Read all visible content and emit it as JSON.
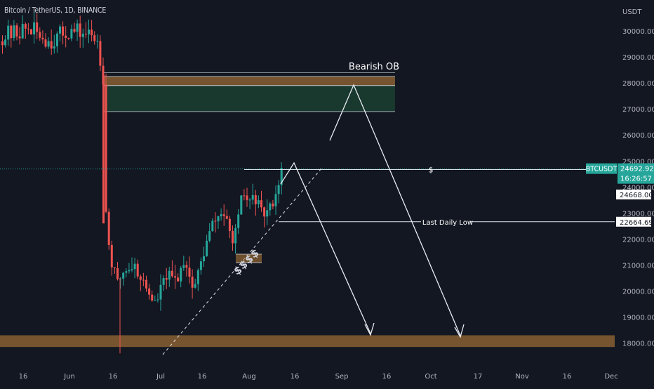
{
  "header": {
    "symbol_line": "Bitcoin / TetherUS, 1D, BINANCE"
  },
  "colors": {
    "background": "#131722",
    "up": "#26a69a",
    "down": "#ef5350",
    "zone_orange": "#c8873a",
    "zone_green": "#1f5a3a",
    "annotation": "#ffffff",
    "price_tag": "#26a69a",
    "text": "#b2b5be"
  },
  "chart_data": {
    "type": "candlestick",
    "title": "Bitcoin / TetherUS, 1D, BINANCE",
    "currency_label": "USDT",
    "ylim": [
      17500,
      31000
    ],
    "y_ticks": [
      18000,
      19000,
      20000,
      21000,
      22000,
      23000,
      24000,
      25000,
      26000,
      27000,
      28000,
      29000,
      30000
    ],
    "x_ticks": [
      "16",
      "Jun",
      "16",
      "Jul",
      "16",
      "Aug",
      "16",
      "Sep",
      "16",
      "Oct",
      "17",
      "Nov",
      "16",
      "Dec"
    ],
    "grid": false,
    "candles_visible": "approx. 2022-05-10 to 2022-08-11, daily candles",
    "current_price": "24692.92",
    "countdown": "16:26:57",
    "price_labels": [
      "24668.00",
      "22664.69"
    ],
    "symbol_tag": "BTCUSDT",
    "zones": [
      {
        "name": "Bearish OB",
        "from": 27900,
        "to": 28250,
        "color": "orange"
      },
      {
        "name": "",
        "from": 26900,
        "to": 27900,
        "color": "green"
      },
      {
        "name": "",
        "from": 17850,
        "to": 18300,
        "color": "orange"
      }
    ],
    "lines": [
      {
        "label": "$",
        "price": 24668.0
      },
      {
        "label": "Last Daily Low",
        "price": 22664.69
      }
    ],
    "annotations": [
      "Bearish OB",
      "$",
      "Last Daily Low",
      "$$$$"
    ]
  }
}
